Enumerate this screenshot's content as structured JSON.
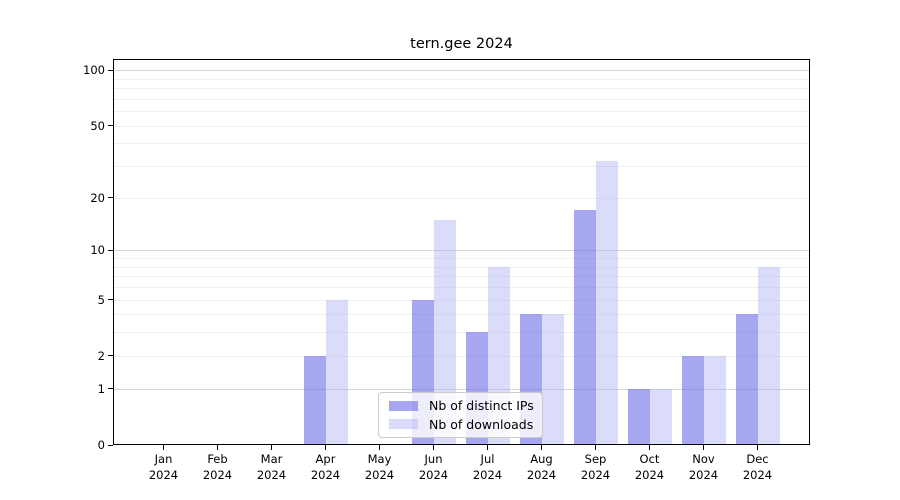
{
  "chart_data": {
    "type": "bar",
    "title": "tern.gee 2024",
    "categories": [
      "Jan 2024",
      "Feb 2024",
      "Mar 2024",
      "Apr 2024",
      "May 2024",
      "Jun 2024",
      "Jul 2024",
      "Aug 2024",
      "Sep 2024",
      "Oct 2024",
      "Nov 2024",
      "Dec 2024"
    ],
    "series": [
      {
        "name": "Nb of distinct IPs",
        "color": "rgba(106,106,232,0.60)",
        "values": [
          0,
          0,
          0,
          2,
          0,
          5,
          3,
          4,
          17,
          1,
          2,
          4
        ]
      },
      {
        "name": "Nb of downloads",
        "color": "rgba(170,170,243,0.42)",
        "values": [
          0,
          0,
          0,
          5,
          0,
          15,
          8,
          4,
          32,
          1,
          2,
          8
        ]
      }
    ],
    "yscale": "log1p",
    "yticks": [
      0,
      1,
      2,
      5,
      10,
      20,
      50,
      100
    ],
    "ylim": [
      0,
      115
    ],
    "xlabel": "",
    "ylabel": "",
    "grid": "horizontal, major at 1/10/100, minor at 2-9 and 20-90",
    "legend_position": "inside lower center",
    "colors": {
      "axis": "#000000",
      "grid_major": "#d6d6d6",
      "grid_minor": "#efefef",
      "text": "#000000",
      "legend_border": "#cccccc"
    }
  }
}
